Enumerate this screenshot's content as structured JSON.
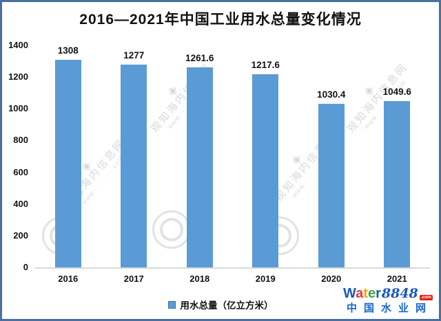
{
  "title": "2016—2021年中国工业用水总量变化情况",
  "chart_data": {
    "type": "bar",
    "title": "2016—2021年中国工业用水总量变化情况",
    "categories": [
      "2016",
      "2017",
      "2018",
      "2019",
      "2020",
      "2021"
    ],
    "values": [
      1308,
      1277,
      1261.6,
      1217.6,
      1030.4,
      1049.6
    ],
    "value_labels": [
      "1308",
      "1277",
      "1261.6",
      "1217.6",
      "1030.4",
      "1049.6"
    ],
    "xlabel": "",
    "ylabel": "",
    "ylim": [
      0,
      1400
    ],
    "yticks": [
      0,
      200,
      400,
      600,
      800,
      1000,
      1200,
      1400
    ],
    "grid": false,
    "legend": "用水总量（亿立方米）",
    "legend_position": "bottom-center",
    "bar_color": "#5B9BD5"
  },
  "legend": {
    "label": "用水总量（亿立方米）",
    "marker_color": "#5B9BD5"
  },
  "watermark": {
    "glyph": "◈",
    "text": "观知海内信息网",
    "url": "www.··········.com"
  },
  "logo": {
    "letters": [
      {
        "ch": "W",
        "color": "#1757c2"
      },
      {
        "ch": "a",
        "color": "#e03a2f"
      },
      {
        "ch": "t",
        "color": "#f0a500"
      },
      {
        "ch": "e",
        "color": "#3fa53f"
      },
      {
        "ch": "r",
        "color": "#1757c2"
      }
    ],
    "number": "8848",
    "badge": ".com",
    "subtitle": "中国水业网"
  },
  "colors": {
    "frame_border": "#4a6fa0",
    "bar": "#5B9BD5",
    "legend_swatch_border": "#41719C",
    "axis_baseline": "#d9d9d9",
    "text": "#111111",
    "logo_blue": "#1757c2",
    "logo_badge_red": "#e2231a"
  }
}
